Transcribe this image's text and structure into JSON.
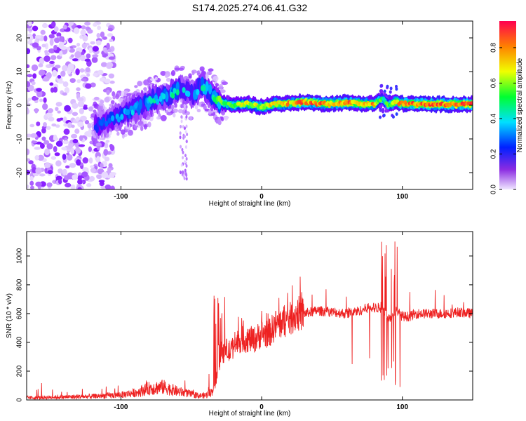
{
  "title": "S174.2025.274.06.41.G32",
  "chart_data": [
    {
      "type": "heatmap",
      "name": "spectrogram",
      "xlabel": "Height of straight line (km)",
      "ylabel": "Frequency (Hz)",
      "xlim": [
        -167,
        150
      ],
      "ylim": [
        -25,
        25
      ],
      "xticks": [
        -100,
        0,
        100
      ],
      "yticks": [
        -20,
        -10,
        0,
        10,
        20
      ],
      "colorbar": {
        "label": "Normalized spectral amplitude",
        "range": [
          0.0,
          0.95
        ],
        "ticks": [
          0.0,
          0.2,
          0.4,
          0.6,
          0.8
        ],
        "colormap": [
          "#e8d8ff",
          "#7b00ff",
          "#0033ff",
          "#00d8ff",
          "#00ff40",
          "#e8ff00",
          "#ff8800",
          "#ff0040"
        ]
      },
      "ridge": {
        "x": [
          -115,
          -105,
          -95,
          -85,
          -75,
          -65,
          -58,
          -50,
          -42,
          -35,
          -30,
          -20,
          -10,
          0,
          10,
          20,
          30,
          40,
          50,
          60,
          70,
          80,
          86,
          90,
          95,
          100,
          120,
          150
        ],
        "y": [
          -6,
          -4,
          -2,
          0,
          2,
          3,
          5,
          3,
          6,
          3,
          1,
          0,
          0.5,
          -0.5,
          0.5,
          0.5,
          1,
          0.5,
          0.5,
          0.8,
          0.5,
          0.5,
          2,
          0,
          1,
          0.5,
          0.3,
          0.3
        ],
        "amplitude": [
          0.3,
          0.35,
          0.4,
          0.45,
          0.45,
          0.5,
          0.45,
          0.45,
          0.5,
          0.55,
          0.6,
          0.65,
          0.7,
          0.7,
          0.75,
          0.8,
          0.85,
          0.85,
          0.8,
          0.85,
          0.8,
          0.8,
          0.5,
          0.6,
          0.8,
          0.85,
          0.9,
          0.9
        ]
      },
      "noise_region_x": [
        -167,
        -115
      ]
    },
    {
      "type": "line",
      "name": "snr",
      "xlabel": "Height of straight line (km)",
      "ylabel": "SNR (10 * v/v)",
      "xlim": [
        -167,
        150
      ],
      "ylim": [
        0,
        1170
      ],
      "xticks": [
        -100,
        0,
        100
      ],
      "yticks": [
        0,
        200,
        400,
        600,
        800,
        1000
      ],
      "color": "#ee2222",
      "series": [
        {
          "name": "SNR envelope",
          "x": [
            -167,
            -140,
            -120,
            -100,
            -90,
            -80,
            -70,
            -60,
            -50,
            -45,
            -40,
            -35,
            -32,
            -30,
            -28,
            -25,
            -22,
            -20,
            -15,
            -10,
            -5,
            0,
            5,
            10,
            15,
            20,
            25,
            30,
            40,
            50,
            60,
            70,
            75,
            80,
            85,
            88,
            90,
            93,
            95,
            97,
            98,
            100,
            105,
            110,
            120,
            130,
            140,
            150
          ],
          "y": [
            15,
            20,
            25,
            35,
            50,
            80,
            90,
            60,
            40,
            30,
            30,
            60,
            150,
            250,
            300,
            350,
            330,
            380,
            420,
            420,
            420,
            460,
            460,
            520,
            540,
            560,
            600,
            600,
            620,
            610,
            600,
            620,
            640,
            640,
            640,
            600,
            560,
            580,
            620,
            620,
            600,
            580,
            580,
            600,
            600,
            600,
            610,
            600
          ]
        }
      ]
    }
  ]
}
